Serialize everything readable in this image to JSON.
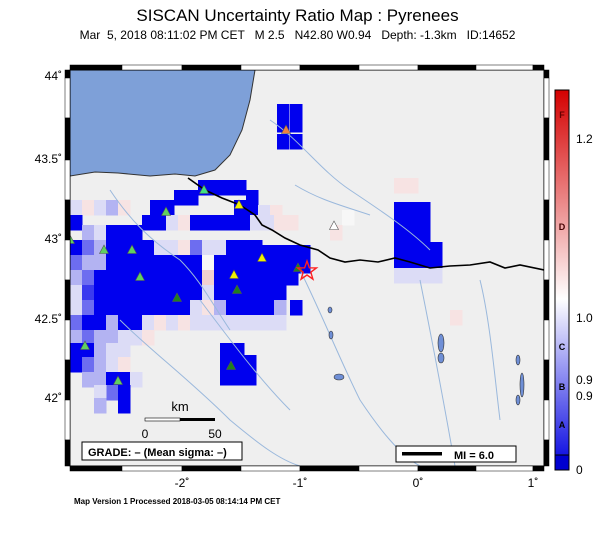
{
  "header": {
    "title": "SISCAN Uncertainty Ratio Map : Pyrenees",
    "subtitle": "Mar  5, 2018 08:11:02 PM CET   M 2.5   N42.80 W0.94   Depth: -1.3km   ID:14652"
  },
  "map": {
    "lat_ticks": [
      "44˚",
      "43.5˚",
      "43˚",
      "42.5˚",
      "42˚"
    ],
    "lon_ticks": [
      "-2˚",
      "-1˚",
      "0˚",
      "1˚"
    ],
    "lon_range": [
      -3.0,
      1.0
    ],
    "lat_range": [
      41.55,
      44.1
    ],
    "epicenter": {
      "lon": -0.94,
      "lat": 42.8,
      "icon": "star-icon"
    },
    "colors": {
      "sea": "#7ea0d8",
      "land": "#efefef",
      "border": "#000000",
      "river": "#9ab8dc",
      "lake": "#6f8fd6",
      "star": "#ff2020"
    }
  },
  "scalebar": {
    "label": "km",
    "ticks": [
      "0",
      "50"
    ]
  },
  "grade_box": {
    "label": "GRADE: – (Mean sigma: –)"
  },
  "mi_box": {
    "label": "MI = 6.0"
  },
  "colorbar": {
    "letters": [
      "F",
      "D",
      "C",
      "B",
      "A"
    ],
    "values": [
      "1.2",
      "1.0",
      "0.9",
      "0.9",
      "0"
    ]
  },
  "footer": {
    "text": "Map Version 1 Processed 2018-03-05 08:14:14 PM CET"
  }
}
